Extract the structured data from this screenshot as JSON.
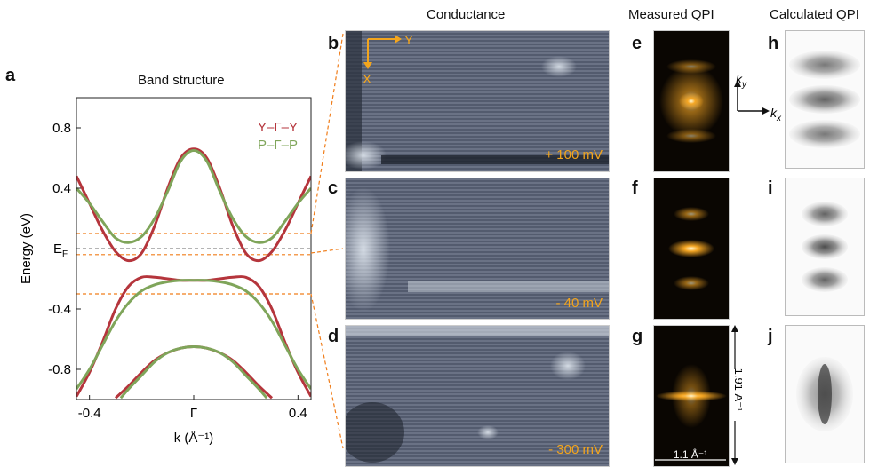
{
  "panels": {
    "a": "a",
    "b": "b",
    "c": "c",
    "d": "d",
    "e": "e",
    "f": "f",
    "g": "g",
    "h": "h",
    "i": "i",
    "j": "j"
  },
  "headings": {
    "band_structure": "Band structure",
    "conductance": "Conductance",
    "measured_qpi": "Measured QPI",
    "calculated_qpi": "Calculated QPI"
  },
  "stm_axes": {
    "y": "Y",
    "x": "X"
  },
  "voltages": [
    "+ 100 mV",
    "- 40 mV",
    "- 300 mV"
  ],
  "qpi_axes": {
    "ky": "k",
    "ky_sub": "y",
    "kx": "k",
    "kx_sub": "x"
  },
  "scale": {
    "vertical": "1.91 Å⁻¹",
    "horizontal": "1.1 Å⁻¹"
  },
  "colors": {
    "red_band": "#b5353c",
    "green_band": "#7fa55a",
    "orange": "#f07d1a",
    "ef_line": "#888888"
  },
  "chart_data": {
    "type": "line",
    "title": "Band structure",
    "xlabel": "k (Å⁻¹)",
    "ylabel": "Energy (eV)",
    "xlim": [
      -0.45,
      0.45
    ],
    "ylim": [
      -1.0,
      1.0
    ],
    "xticks": [
      -0.4,
      0.0,
      0.4
    ],
    "xticklabels": [
      "-0.4",
      "Γ",
      "0.4"
    ],
    "yticks": [
      -0.8,
      -0.4,
      0.4,
      0.8
    ],
    "ytext": "E",
    "ytext_sub": "F",
    "legend": [
      "Y–Γ–Y",
      "P–Γ–P"
    ],
    "series": [
      {
        "name": "Y–Γ–Y",
        "color": "#b5353c",
        "x": [
          -0.45,
          -0.4,
          -0.35,
          -0.3,
          -0.25,
          -0.2,
          -0.15,
          -0.1,
          -0.05,
          0.0,
          0.05,
          0.1,
          0.15,
          0.2,
          0.25,
          0.3,
          0.35,
          0.4,
          0.45
        ],
        "y": [
          0.48,
          0.3,
          0.12,
          -0.02,
          -0.08,
          -0.03,
          0.15,
          0.4,
          0.6,
          0.66,
          0.6,
          0.4,
          0.15,
          -0.03,
          -0.08,
          -0.02,
          0.12,
          0.3,
          0.48
        ]
      },
      {
        "name": "Y–Γ–Y",
        "color": "#b5353c",
        "x": [
          -0.45,
          -0.4,
          -0.35,
          -0.3,
          -0.25,
          -0.2,
          -0.15,
          -0.1,
          -0.05,
          0.0,
          0.05,
          0.1,
          0.15,
          0.2,
          0.25,
          0.3,
          0.35,
          0.4,
          0.45
        ],
        "y": [
          -0.98,
          -0.82,
          -0.62,
          -0.4,
          -0.25,
          -0.19,
          -0.19,
          -0.2,
          -0.21,
          -0.21,
          -0.21,
          -0.2,
          -0.19,
          -0.19,
          -0.25,
          -0.4,
          -0.62,
          -0.82,
          -0.98
        ]
      },
      {
        "name": "Y–Γ–Y",
        "color": "#b5353c",
        "x": [
          -0.3,
          -0.25,
          -0.2,
          -0.15,
          -0.1,
          -0.05,
          0.0,
          0.05,
          0.1,
          0.15,
          0.2,
          0.25,
          0.3
        ],
        "y": [
          -0.99,
          -0.91,
          -0.82,
          -0.74,
          -0.69,
          -0.66,
          -0.65,
          -0.66,
          -0.69,
          -0.74,
          -0.82,
          -0.91,
          -0.99
        ]
      },
      {
        "name": "P–Γ–P",
        "color": "#7fa55a",
        "x": [
          -0.45,
          -0.4,
          -0.35,
          -0.3,
          -0.25,
          -0.2,
          -0.15,
          -0.1,
          -0.05,
          0.0,
          0.05,
          0.1,
          0.15,
          0.2,
          0.25,
          0.3,
          0.35,
          0.4,
          0.45
        ],
        "y": [
          0.4,
          0.3,
          0.18,
          0.07,
          0.04,
          0.08,
          0.2,
          0.38,
          0.58,
          0.65,
          0.58,
          0.38,
          0.2,
          0.08,
          0.04,
          0.07,
          0.18,
          0.3,
          0.4
        ]
      },
      {
        "name": "P–Γ–P",
        "color": "#7fa55a",
        "x": [
          -0.45,
          -0.4,
          -0.35,
          -0.3,
          -0.25,
          -0.2,
          -0.15,
          -0.1,
          -0.05,
          0.0,
          0.05,
          0.1,
          0.15,
          0.2,
          0.25,
          0.3,
          0.35,
          0.4,
          0.45
        ],
        "y": [
          -0.93,
          -0.8,
          -0.64,
          -0.48,
          -0.36,
          -0.28,
          -0.24,
          -0.22,
          -0.21,
          -0.21,
          -0.21,
          -0.22,
          -0.24,
          -0.28,
          -0.36,
          -0.48,
          -0.64,
          -0.8,
          -0.93
        ]
      },
      {
        "name": "P–Γ–P",
        "color": "#7fa55a",
        "x": [
          -0.28,
          -0.25,
          -0.2,
          -0.15,
          -0.1,
          -0.05,
          0.0,
          0.05,
          0.1,
          0.15,
          0.2,
          0.25,
          0.28
        ],
        "y": [
          -0.99,
          -0.93,
          -0.84,
          -0.75,
          -0.69,
          -0.66,
          -0.65,
          -0.66,
          -0.69,
          -0.75,
          -0.84,
          -0.93,
          -0.99
        ]
      }
    ],
    "hlines": [
      {
        "y": 0.1,
        "color": "#f07d1a",
        "style": "dashed"
      },
      {
        "y": -0.04,
        "color": "#f07d1a",
        "style": "dashed"
      },
      {
        "y": -0.3,
        "color": "#f07d1a",
        "style": "dashed"
      },
      {
        "y": 0.0,
        "color": "#888888",
        "style": "dashed"
      }
    ],
    "grid": false
  }
}
